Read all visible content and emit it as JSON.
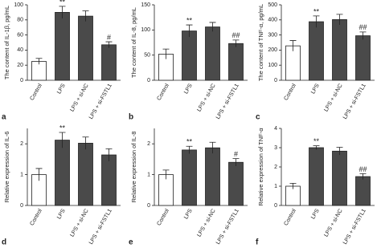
{
  "chart_data": [
    {
      "type": "bar",
      "panel": "a",
      "ylabel": "The content of IL-1β, pg/mL",
      "categories": [
        "Control",
        "LPS",
        "LPS + si-NC",
        "LPS + si-FSTL1"
      ],
      "values": [
        25,
        90,
        85,
        47
      ],
      "errors": [
        4,
        8,
        7,
        4
      ],
      "annotations": [
        null,
        "**",
        null,
        "#"
      ],
      "colors": [
        "#ffffff",
        "#4a4a4a",
        "#4a4a4a",
        "#4a4a4a"
      ],
      "ylim": [
        0,
        100
      ],
      "yticks": [
        0,
        20,
        40,
        60,
        80,
        100
      ]
    },
    {
      "type": "bar",
      "panel": "b",
      "ylabel": "The content of IL-8, pg/mL",
      "categories": [
        "Control",
        "LPS",
        "LPS + si-NC",
        "LPS + si-FSTL1"
      ],
      "values": [
        52,
        98,
        106,
        73
      ],
      "errors": [
        10,
        12,
        9,
        7
      ],
      "annotations": [
        null,
        "**",
        null,
        "##"
      ],
      "colors": [
        "#ffffff",
        "#4a4a4a",
        "#4a4a4a",
        "#4a4a4a"
      ],
      "ylim": [
        0,
        150
      ],
      "yticks": [
        0,
        50,
        100,
        150
      ]
    },
    {
      "type": "bar",
      "panel": "c",
      "ylabel": "The content of TNF-α, pg/mL",
      "categories": [
        "Control",
        "LPS",
        "LPS + si-NC",
        "LPS + si-FSTL1"
      ],
      "values": [
        228,
        388,
        402,
        295
      ],
      "errors": [
        35,
        38,
        35,
        25
      ],
      "annotations": [
        null,
        "**",
        null,
        "##"
      ],
      "colors": [
        "#ffffff",
        "#4a4a4a",
        "#4a4a4a",
        "#4a4a4a"
      ],
      "ylim": [
        0,
        500
      ],
      "yticks": [
        0,
        100,
        200,
        300,
        400,
        500
      ]
    },
    {
      "type": "bar",
      "panel": "d",
      "ylabel": "Relative expression of IL-6",
      "categories": [
        "Control",
        "LPS",
        "LPS + si-NC",
        "LPS + si-FSTL1"
      ],
      "values": [
        1.0,
        2.12,
        2.02,
        1.64
      ],
      "errors": [
        0.2,
        0.25,
        0.2,
        0.2
      ],
      "annotations": [
        null,
        "**",
        null,
        null
      ],
      "colors": [
        "#ffffff",
        "#4a4a4a",
        "#4a4a4a",
        "#4a4a4a"
      ],
      "ylim": [
        0,
        2.5
      ],
      "yticks": [
        0,
        1,
        2
      ]
    },
    {
      "type": "bar",
      "panel": "e",
      "ylabel": "Relative expression of IL-8",
      "categories": [
        "Control",
        "LPS",
        "LPS + si-NC",
        "LPS + si-FSTL1"
      ],
      "values": [
        1.0,
        1.8,
        1.87,
        1.4
      ],
      "errors": [
        0.15,
        0.12,
        0.18,
        0.12
      ],
      "annotations": [
        null,
        "**",
        null,
        "#"
      ],
      "colors": [
        "#ffffff",
        "#4a4a4a",
        "#4a4a4a",
        "#4a4a4a"
      ],
      "ylim": [
        0,
        2.5
      ],
      "yticks": [
        0,
        1,
        2
      ]
    },
    {
      "type": "bar",
      "panel": "f",
      "ylabel": "Relative expression of TNF-α",
      "categories": [
        "Control",
        "LPS",
        "LPS + si-NC",
        "LPS + si-FSTL1"
      ],
      "values": [
        1.0,
        3.0,
        2.82,
        1.5
      ],
      "errors": [
        0.15,
        0.1,
        0.2,
        0.15
      ],
      "annotations": [
        null,
        "**",
        null,
        "##"
      ],
      "colors": [
        "#ffffff",
        "#4a4a4a",
        "#4a4a4a",
        "#4a4a4a"
      ],
      "ylim": [
        0,
        4
      ],
      "yticks": [
        0,
        1,
        2,
        3,
        4
      ]
    }
  ]
}
